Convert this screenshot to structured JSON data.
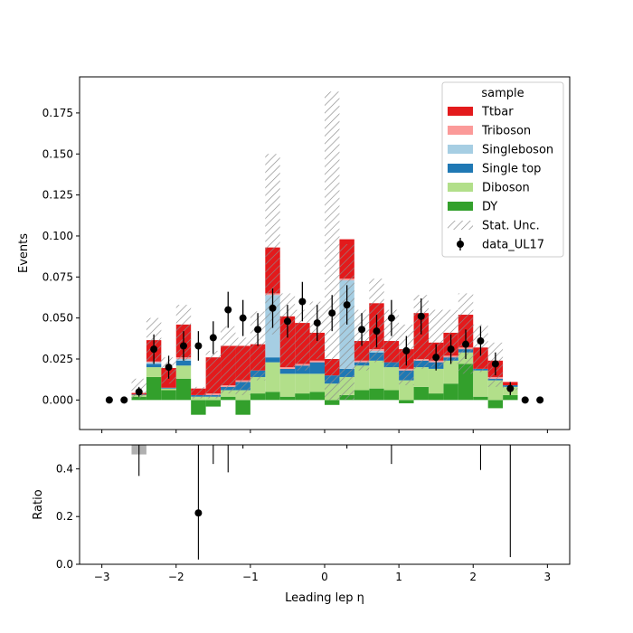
{
  "chart_data": {
    "type": "bar",
    "subtype": "stacked-histogram-with-ratio",
    "x_label": "Leading lep η",
    "bin_edges": [
      -2.6,
      -2.4,
      -2.2,
      -2.0,
      -1.8,
      -1.6,
      -1.4,
      -1.2,
      -1.0,
      -0.8,
      -0.6,
      -0.4,
      -0.2,
      0.0,
      0.2,
      0.4,
      0.6,
      0.8,
      1.0,
      1.2,
      1.4,
      1.6,
      1.8,
      2.0,
      2.2,
      2.4,
      2.6
    ],
    "main": {
      "ylabel": "Events",
      "xlim": [
        -3.3,
        3.3
      ],
      "ylim": [
        -0.018,
        0.197
      ],
      "x_ticks": [
        -3,
        -2,
        -1,
        0,
        1,
        2,
        3
      ],
      "x_tick_labels": [
        "−3",
        "−2",
        "−1",
        "0",
        "1",
        "2",
        "3"
      ],
      "y_ticks": [
        0.0,
        0.025,
        0.05,
        0.075,
        0.1,
        0.125,
        0.15,
        0.175
      ],
      "y_tick_labels": [
        "0.000",
        "0.025",
        "0.050",
        "0.075",
        "0.100",
        "0.125",
        "0.150",
        "0.175"
      ],
      "series": [
        {
          "name": "DY",
          "color": "#33a02c",
          "values": [
            0.002,
            0.014,
            0.006,
            0.013,
            -0.009,
            -0.004,
            0.002,
            -0.009,
            0.004,
            0.005,
            0.002,
            0.004,
            0.005,
            -0.003,
            0.003,
            0.006,
            0.007,
            0.006,
            -0.002,
            0.008,
            0.004,
            0.01,
            0.022,
            0.002,
            -0.005,
            0.003
          ]
        },
        {
          "name": "Diboson",
          "color": "#b2df8a",
          "values": [
            0.001,
            0.006,
            0.001,
            0.008,
            0.002,
            0.002,
            0.004,
            0.006,
            0.01,
            0.018,
            0.014,
            0.012,
            0.011,
            0.01,
            0.011,
            0.015,
            0.017,
            0.014,
            0.012,
            0.012,
            0.015,
            0.014,
            0.007,
            0.016,
            0.012,
            0.005
          ]
        },
        {
          "name": "Single top",
          "color": "#1f78b4",
          "values": [
            0.0003,
            0.002,
            0.0005,
            0.003,
            0.001,
            0.001,
            0.002,
            0.005,
            0.004,
            0.003,
            0.003,
            0.005,
            0.007,
            0.005,
            0.005,
            0.002,
            0.005,
            0.003,
            0.006,
            0.004,
            0.004,
            0.002,
            0.002,
            0.001,
            0.001,
            0.001
          ]
        },
        {
          "name": "Singleboson",
          "color": "#a6cee3",
          "values": [
            0,
            0.001,
            0,
            0.001,
            0,
            0,
            0,
            0,
            0,
            0.038,
            0,
            0,
            0,
            0,
            0.054,
            0,
            0.001,
            0,
            0,
            0,
            0,
            0,
            0,
            0,
            0,
            0
          ]
        },
        {
          "name": "Triboson",
          "color": "#fb9a99",
          "values": [
            0,
            0.0005,
            0,
            0.001,
            0,
            0.001,
            0.001,
            0.001,
            0,
            0.001,
            0.001,
            0.001,
            0.001,
            0,
            0.001,
            0.001,
            0.001,
            0,
            0.001,
            0.001,
            0.001,
            0.001,
            0.001,
            0,
            0.001,
            0
          ]
        },
        {
          "name": "Ttbar",
          "color": "#e31a1c",
          "values": [
            0.001,
            0.013,
            0.012,
            0.02,
            0.004,
            0.022,
            0.024,
            0.021,
            0.016,
            0.028,
            0.031,
            0.025,
            0.017,
            0.01,
            0.024,
            0.012,
            0.028,
            0.013,
            0.012,
            0.028,
            0.011,
            0.014,
            0.02,
            0.013,
            0.01,
            0.002
          ]
        }
      ],
      "stat_unc": {
        "name": "Stat. Unc.",
        "low": [
          0.001,
          0.023,
          0.01,
          0.024,
          0.001,
          0.001,
          0.004,
          0.003,
          0.012,
          0.04,
          0.02,
          0.018,
          0.025,
          0.0,
          0.0,
          0.018,
          0.023,
          0.02,
          0.009,
          0.019,
          0.02,
          0.022,
          0.016,
          0.017,
          0.008,
          0.006
        ],
        "high": [
          0.013,
          0.05,
          0.026,
          0.058,
          0.008,
          0.03,
          0.045,
          0.038,
          0.054,
          0.15,
          0.065,
          0.055,
          0.06,
          0.188,
          0.095,
          0.055,
          0.074,
          0.055,
          0.046,
          0.064,
          0.055,
          0.055,
          0.065,
          0.046,
          0.035,
          0.009
        ]
      },
      "data": {
        "name": "data_UL17",
        "x": [
          -2.9,
          -2.7,
          -2.5,
          -2.3,
          -2.1,
          -1.9,
          -1.7,
          -1.5,
          -1.3,
          -1.1,
          -0.9,
          -0.7,
          -0.5,
          -0.3,
          -0.1,
          0.1,
          0.3,
          0.5,
          0.7,
          0.9,
          1.1,
          1.3,
          1.5,
          1.7,
          1.9,
          2.1,
          2.3,
          2.5,
          2.7,
          2.9
        ],
        "y": [
          0,
          0,
          0.005,
          0.031,
          0.02,
          0.033,
          0.033,
          0.038,
          0.055,
          0.05,
          0.043,
          0.056,
          0.048,
          0.06,
          0.047,
          0.053,
          0.058,
          0.043,
          0.042,
          0.05,
          0.03,
          0.051,
          0.026,
          0.031,
          0.034,
          0.036,
          0.022,
          0.007,
          0,
          0
        ],
        "err": [
          0,
          0,
          0.003,
          0.009,
          0.007,
          0.009,
          0.009,
          0.01,
          0.011,
          0.011,
          0.01,
          0.012,
          0.01,
          0.012,
          0.011,
          0.011,
          0.012,
          0.01,
          0.01,
          0.011,
          0.009,
          0.011,
          0.008,
          0.009,
          0.009,
          0.009,
          0.007,
          0.004,
          0,
          0
        ]
      },
      "legend_title": "sample",
      "legend_placement": "top-right",
      "legend_entries": [
        "Ttbar",
        "Triboson",
        "Singleboson",
        "Single top",
        "Diboson",
        "DY",
        "Stat. Unc.",
        "data_UL17"
      ]
    },
    "ratio": {
      "ylabel": "Ratio",
      "ylim": [
        0.0,
        0.5
      ],
      "y_ticks": [
        0.0,
        0.2,
        0.4
      ],
      "y_tick_labels": [
        "0.0",
        "0.2",
        "0.4"
      ],
      "band": {
        "x": [
          -2.6,
          -2.4
        ],
        "low": 0.46,
        "high": 0.5
      },
      "points": [
        {
          "x": -1.7,
          "y": 0.215,
          "lo": 0.02,
          "hi": 0.55
        }
      ],
      "error_bars": [
        {
          "x": -2.5,
          "lo": 0.37,
          "hi": 0.5
        },
        {
          "x": -1.5,
          "lo": 0.42,
          "hi": 0.5
        },
        {
          "x": -1.3,
          "lo": 0.385,
          "hi": 0.5
        },
        {
          "x": -1.1,
          "lo": 0.485,
          "hi": 0.5
        },
        {
          "x": 0.3,
          "lo": 0.485,
          "hi": 0.5
        },
        {
          "x": 0.9,
          "lo": 0.42,
          "hi": 0.5
        },
        {
          "x": 2.1,
          "lo": 0.395,
          "hi": 0.5
        },
        {
          "x": 2.5,
          "lo": 0.03,
          "hi": 0.5
        }
      ]
    }
  }
}
